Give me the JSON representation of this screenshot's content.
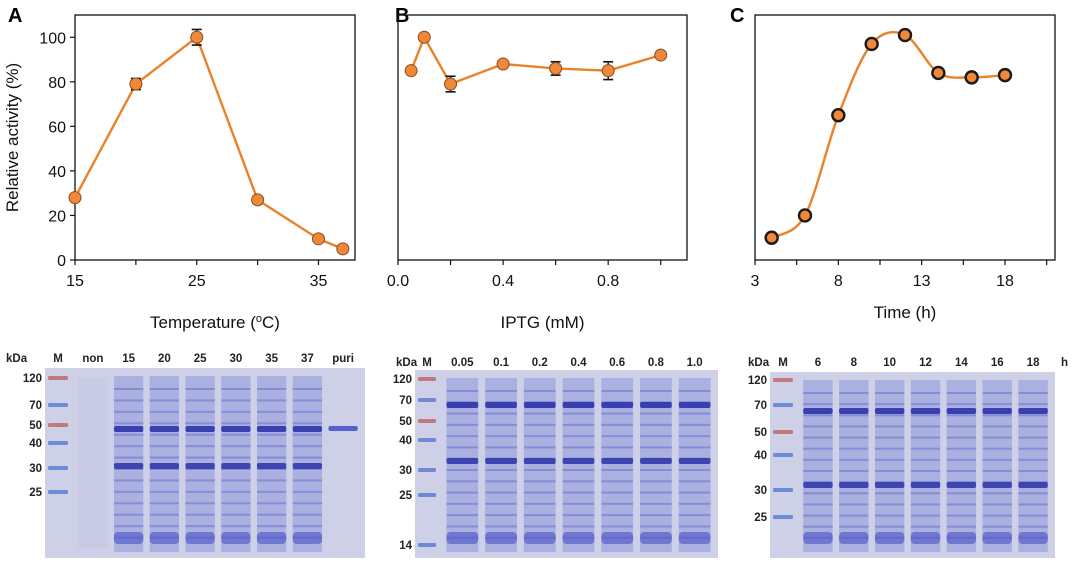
{
  "colors": {
    "line": "#e8822b",
    "marker_fill": "#f0883a",
    "marker_edge": "#1a1a1a",
    "gel_bg": "#cdd0e6",
    "band": "#4a52c8",
    "band_dark": "#2c33a8"
  },
  "chart_data": [
    {
      "panel": "A",
      "type": "line",
      "xlabel": "Temperature (",
      "xlabel_sup": "o",
      "xlabel_tail": "C)",
      "ylabel": "Relative activity (%)",
      "x": [
        15,
        20,
        25,
        30,
        35,
        37
      ],
      "y": [
        28,
        79,
        100,
        27,
        9.5,
        5
      ],
      "err": [
        0,
        2.5,
        3.5,
        0,
        0,
        0
      ],
      "xlim": [
        15,
        38
      ],
      "ylim": [
        0,
        110
      ],
      "xticks": [
        "15",
        "25",
        "35"
      ],
      "yticks": [
        "0",
        "20",
        "40",
        "60",
        "80",
        "100"
      ],
      "grid": false,
      "smooth": false
    },
    {
      "panel": "B",
      "type": "line",
      "xlabel": "IPTG (mM)",
      "ylabel": "",
      "x": [
        0.05,
        0.1,
        0.2,
        0.4,
        0.6,
        0.8,
        1.0
      ],
      "y": [
        85,
        100,
        79,
        88,
        86,
        85,
        92
      ],
      "err": [
        0,
        0,
        3.5,
        0,
        3,
        4,
        0
      ],
      "xlim": [
        0.0,
        1.1
      ],
      "ylim": [
        0,
        110
      ],
      "xticks": [
        "0.0",
        "0.4",
        "0.8"
      ],
      "yticks": [],
      "grid": false,
      "smooth": false
    },
    {
      "panel": "C",
      "type": "line",
      "xlabel": "Time (h)",
      "ylabel": "",
      "x": [
        4,
        6,
        8,
        10,
        12,
        14,
        16,
        18
      ],
      "y": [
        10,
        20,
        65,
        97,
        101,
        84,
        82,
        83
      ],
      "err": [
        0,
        0,
        0,
        0,
        0,
        0,
        0,
        0
      ],
      "xlim": [
        3,
        21
      ],
      "ylim": [
        0,
        110
      ],
      "xticks": [
        "3",
        "8",
        "13",
        "18"
      ],
      "yticks": [],
      "grid": false,
      "smooth": true
    }
  ],
  "gels": [
    {
      "panel": "A",
      "kda_label": "kDa",
      "marker_label": "M",
      "lane_labels": [
        "non",
        "15",
        "20",
        "25",
        "30",
        "35",
        "37",
        "puri"
      ],
      "ladder": [
        "120",
        "70",
        "50",
        "40",
        "30",
        "25"
      ],
      "unit_label": ""
    },
    {
      "panel": "B",
      "kda_label": "kDa",
      "marker_label": "M",
      "lane_labels": [
        "0.05",
        "0.1",
        "0.2",
        "0.4",
        "0.6",
        "0.8",
        "1.0"
      ],
      "ladder": [
        "120",
        "70",
        "50",
        "40",
        "30",
        "25",
        "14"
      ],
      "unit_label": ""
    },
    {
      "panel": "C",
      "kda_label": "kDa",
      "marker_label": "M",
      "lane_labels": [
        "6",
        "8",
        "10",
        "12",
        "14",
        "16",
        "18"
      ],
      "ladder": [
        "120",
        "70",
        "50",
        "40",
        "30",
        "25"
      ],
      "unit_label": "h"
    }
  ]
}
